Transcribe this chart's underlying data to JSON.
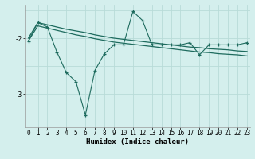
{
  "xlabel": "Humidex (Indice chaleur)",
  "bg_color": "#d4efed",
  "grid_color": "#b8dbd8",
  "line_color": "#1e6b5e",
  "x": [
    0,
    1,
    2,
    3,
    4,
    5,
    6,
    7,
    8,
    9,
    10,
    11,
    12,
    13,
    14,
    15,
    16,
    17,
    18,
    19,
    20,
    21,
    22,
    23
  ],
  "y_zigzag": [
    -2.05,
    -1.72,
    -1.8,
    -2.25,
    -2.62,
    -2.78,
    -3.38,
    -2.58,
    -2.28,
    -2.12,
    -2.12,
    -1.52,
    -1.68,
    -2.12,
    -2.12,
    -2.12,
    -2.12,
    -2.08,
    -2.3,
    -2.12,
    -2.12,
    -2.12,
    -2.12,
    -2.08
  ],
  "y_trend1": [
    -2.0,
    -1.72,
    -1.76,
    -1.8,
    -1.84,
    -1.87,
    -1.9,
    -1.94,
    -1.97,
    -2.0,
    -2.02,
    -2.04,
    -2.06,
    -2.08,
    -2.1,
    -2.12,
    -2.14,
    -2.16,
    -2.17,
    -2.19,
    -2.2,
    -2.21,
    -2.23,
    -2.24
  ],
  "y_trend2": [
    -2.05,
    -1.78,
    -1.82,
    -1.86,
    -1.9,
    -1.94,
    -1.97,
    -2.01,
    -2.04,
    -2.07,
    -2.09,
    -2.11,
    -2.13,
    -2.15,
    -2.17,
    -2.19,
    -2.21,
    -2.23,
    -2.25,
    -2.26,
    -2.28,
    -2.29,
    -2.3,
    -2.32
  ],
  "ylim": [
    -3.6,
    -1.4
  ],
  "yticks": [
    -3.0,
    -2.0
  ],
  "xlim": [
    -0.3,
    23.3
  ],
  "tick_fontsize": 5.5,
  "label_fontsize": 6.5
}
